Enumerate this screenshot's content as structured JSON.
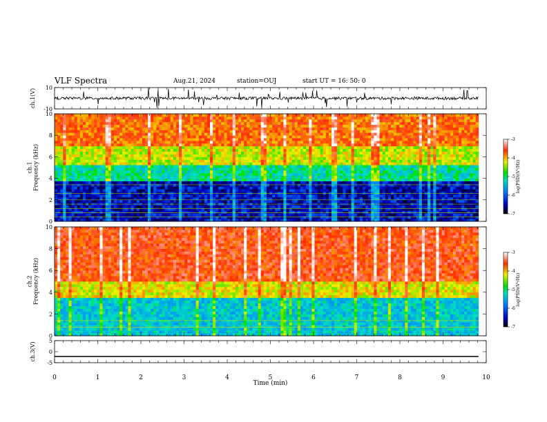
{
  "header": {
    "title": "VLF Spectra",
    "date": "Aug.21, 2024",
    "station": "station=OUJ",
    "start_ut": "start  UT =   16: 50: 0"
  },
  "chart_data": [
    {
      "type": "line",
      "panel": "ch1_waveform",
      "ylabel": "ch.1(V)",
      "ylim": [
        -10,
        10
      ],
      "yticks": [
        "10",
        "-10"
      ],
      "xlim": [
        0,
        9.82
      ],
      "baseline": 0,
      "series": [
        {
          "values_note": "",
          "x": [
            0,
            9.82
          ],
          "y": [
            0,
            0
          ]
        }
      ]
    },
    {
      "type": "heatmap",
      "panel": "ch1_spectrogram",
      "ylabel": "ch.1\nFrequency (kHz)",
      "ylim": [
        0,
        10
      ],
      "yticks": [
        "0",
        "2",
        "4",
        "6",
        "8",
        "10"
      ],
      "colorbar": {
        "label": "log(PSD)(V²/Hz)",
        "range": [
          -7,
          -3
        ],
        "ticks": [
          "-3",
          "-4",
          "-5",
          "-6",
          "-7"
        ]
      },
      "bands": [
        {
          "fmin": 0,
          "fmax": 3.8,
          "level": -6.5
        },
        {
          "fmin": 3.8,
          "fmax": 5.2,
          "level": -5.3
        },
        {
          "fmin": 5.2,
          "fmax": 7,
          "level": -4.5
        },
        {
          "fmin": 7,
          "fmax": 10,
          "level": -3.9
        }
      ]
    },
    {
      "type": "heatmap",
      "panel": "ch2_spectrogram",
      "ylabel": "ch.2\nFrequency (kHz)",
      "ylim": [
        0,
        10
      ],
      "yticks": [
        "0",
        "2",
        "4",
        "6",
        "8",
        "10"
      ],
      "colorbar": {
        "label": "log(PSD)(V²/Hz)",
        "range": [
          -7,
          -3
        ],
        "ticks": [
          "-3",
          "-4",
          "-5",
          "-6",
          "-7"
        ]
      },
      "bands": [
        {
          "fmin": 0,
          "fmax": 3.5,
          "level": -5.5
        },
        {
          "fmin": 3.5,
          "fmax": 5,
          "level": -4.4
        },
        {
          "fmin": 5,
          "fmax": 10,
          "level": -3.7
        }
      ]
    },
    {
      "type": "line",
      "panel": "ch3_waveform",
      "ylabel": "ch.3(V)",
      "ylim": [
        -5,
        5
      ],
      "yticks": [
        "5",
        "0",
        "-5"
      ],
      "xlim": [
        0,
        9.82
      ],
      "series": [
        {
          "x": [
            0,
            9.82
          ],
          "y": [
            -2.2,
            -2.2
          ]
        }
      ]
    }
  ],
  "xaxis": {
    "label": "Time  (min)",
    "range": [
      0,
      10
    ],
    "ticks": [
      "0",
      "1",
      "2",
      "3",
      "4",
      "5",
      "6",
      "7",
      "8",
      "9",
      "10"
    ]
  },
  "colors": {
    "low": "#00008b",
    "mid": "#00c000",
    "high": "#ff2000",
    "line": "#000000"
  }
}
